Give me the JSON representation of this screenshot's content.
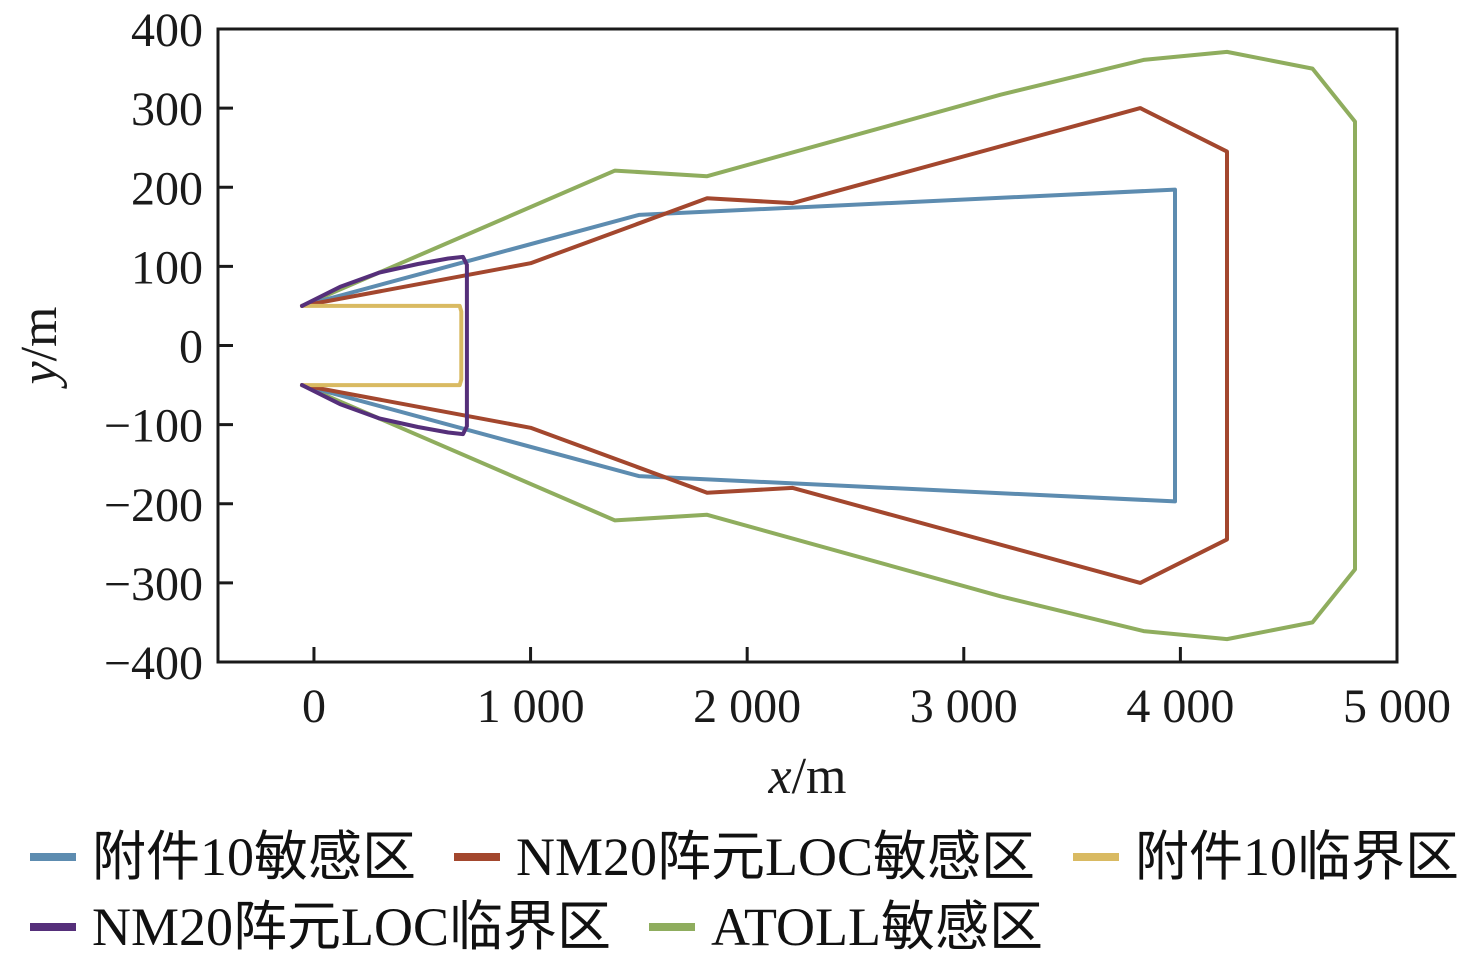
{
  "chart_data": {
    "type": "line",
    "title": "",
    "xlabel": "x/m",
    "ylabel": "y/m",
    "xlim": [
      -443,
      5000
    ],
    "ylim": [
      -400,
      400
    ],
    "grid": false,
    "legend_position": "bottom",
    "x_ticks": [
      0,
      1000,
      2000,
      3000,
      4000,
      5000
    ],
    "x_tick_labels": [
      "0",
      "1 000",
      "2 000",
      "3 000",
      "4 000",
      "5 000"
    ],
    "y_ticks": [
      400,
      300,
      200,
      100,
      0,
      -100,
      -200,
      -300,
      -400
    ],
    "y_tick_labels": [
      "400",
      "300",
      "200",
      "100",
      "0",
      "−100",
      "−200",
      "−300",
      "−400"
    ],
    "axis_color": "#1a1a1a",
    "series": [
      {
        "name": "ATOLL敏感区",
        "color": "#8fad5e",
        "points": [
          [
            -55,
            50
          ],
          [
            1390,
            221
          ],
          [
            1815,
            214
          ],
          [
            3170,
            317
          ],
          [
            3830,
            361
          ],
          [
            4215,
            371
          ],
          [
            4610,
            350
          ],
          [
            4806,
            283
          ],
          [
            4806,
            -283
          ],
          [
            4610,
            -350
          ],
          [
            4215,
            -371
          ],
          [
            3830,
            -361
          ],
          [
            3170,
            -317
          ],
          [
            1815,
            -214
          ],
          [
            1390,
            -221
          ],
          [
            -55,
            -50
          ]
        ]
      },
      {
        "name": "附件10敏感区",
        "color": "#5d8cb0",
        "points": [
          [
            -55,
            50
          ],
          [
            1500,
            165
          ],
          [
            3975,
            197
          ],
          [
            3975,
            -197
          ],
          [
            1500,
            -165
          ],
          [
            -55,
            -50
          ]
        ]
      },
      {
        "name": "NM20阵元LOC敏感区",
        "color": "#a3472e",
        "points": [
          [
            -55,
            50
          ],
          [
            1000,
            104
          ],
          [
            1815,
            186
          ],
          [
            2210,
            180
          ],
          [
            3815,
            300
          ],
          [
            4215,
            245
          ],
          [
            4215,
            -245
          ],
          [
            3815,
            -300
          ],
          [
            2210,
            -180
          ],
          [
            1815,
            -186
          ],
          [
            1000,
            -104
          ],
          [
            -55,
            -50
          ]
        ]
      },
      {
        "name": "附件10临界区",
        "color": "#d9ba62",
        "points": [
          [
            -55,
            50
          ],
          [
            673,
            50
          ],
          [
            680,
            43
          ],
          [
            680,
            -43
          ],
          [
            673,
            -50
          ],
          [
            -55,
            -50
          ]
        ]
      },
      {
        "name": "NM20阵元LOC临界区",
        "color": "#552f7a",
        "points": [
          [
            -55,
            50
          ],
          [
            120,
            74
          ],
          [
            300,
            92
          ],
          [
            480,
            103
          ],
          [
            620,
            110
          ],
          [
            688,
            112
          ],
          [
            706,
            102
          ],
          [
            706,
            -102
          ],
          [
            688,
            -112
          ],
          [
            620,
            -110
          ],
          [
            480,
            -103
          ],
          [
            300,
            -92
          ],
          [
            120,
            -74
          ],
          [
            -55,
            -50
          ]
        ]
      }
    ],
    "legend_order": [
      "附件10敏感区",
      "NM20阵元LOC敏感区",
      "附件10临界区",
      "NM20阵元LOC临界区",
      "ATOLL敏感区"
    ],
    "legend_rows": [
      3,
      2
    ]
  }
}
